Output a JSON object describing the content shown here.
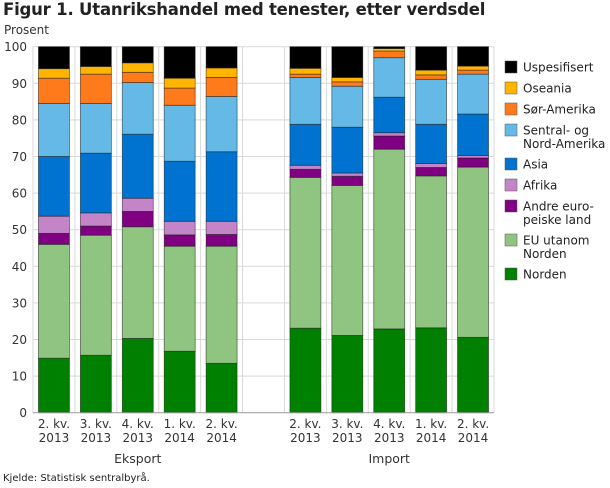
{
  "title": "Figur 1. Utanrikshandel med tenester, etter verdsdel",
  "source": "Kjelde: Statistisk sentralbyrå.",
  "chart_data": {
    "type": "bar",
    "stacked": true,
    "title": "Figur 1. Utanrikshandel med tenester, etter verdsdel",
    "ylabel": "Prosent",
    "xlabel": "",
    "ylim": [
      0,
      100
    ],
    "yticks": [
      0,
      10,
      20,
      30,
      40,
      50,
      60,
      70,
      80,
      90,
      100
    ],
    "grid": true,
    "legend_position": "right",
    "groups": [
      {
        "name": "Eksport",
        "categories": [
          [
            "2. kv.",
            "2013"
          ],
          [
            "3. kv.",
            "2013"
          ],
          [
            "4. kv.",
            "2013"
          ],
          [
            "1. kv.",
            "2014"
          ],
          [
            "2. kv.",
            "2014"
          ]
        ]
      },
      {
        "name": "Import",
        "categories": [
          [
            "2. kv.",
            "2013"
          ],
          [
            "3. kv.",
            "2013"
          ],
          [
            "4. kv.",
            "2013"
          ],
          [
            "1. kv.",
            "2014"
          ],
          [
            "2. kv.",
            "2014"
          ]
        ]
      }
    ],
    "categories": [
      "Eksport 2. kv. 2013",
      "Eksport 3. kv. 2013",
      "Eksport 4. kv. 2013",
      "Eksport 1. kv. 2014",
      "Eksport 2. kv. 2014",
      "Import 2. kv. 2013",
      "Import 3. kv. 2013",
      "Import 4. kv. 2013",
      "Import 1. kv. 2014",
      "Import 2. kv. 2014"
    ],
    "series": [
      {
        "name": "Norden",
        "legend": [
          "Norden"
        ],
        "color": "#008000",
        "values": [
          14.9,
          15.7,
          20.3,
          16.8,
          13.5,
          23.1,
          21.1,
          22.9,
          23.2,
          20.6
        ]
      },
      {
        "name": "EU utanom Norden",
        "legend": [
          "EU utanom",
          "Norden"
        ],
        "color": "#90C581",
        "values": [
          31.1,
          32.8,
          30.5,
          28.7,
          32.0,
          41.2,
          41.0,
          49.1,
          41.5,
          46.5
        ]
      },
      {
        "name": "Andre europeiske land",
        "legend": [
          "Andre euro-",
          "peiske land"
        ],
        "color": "#7F0080",
        "values": [
          3.0,
          2.5,
          4.2,
          3.1,
          3.2,
          2.2,
          2.5,
          3.6,
          2.3,
          2.5
        ]
      },
      {
        "name": "Afrika",
        "legend": [
          "Afrika"
        ],
        "color": "#C484C8",
        "values": [
          4.7,
          3.6,
          3.6,
          3.7,
          3.6,
          1.1,
          0.9,
          0.9,
          1.1,
          0.7
        ]
      },
      {
        "name": "Asia",
        "legend": [
          "Asia"
        ],
        "color": "#0073D1",
        "values": [
          16.3,
          16.3,
          17.5,
          16.4,
          19.0,
          11.2,
          12.5,
          9.7,
          10.7,
          11.3
        ]
      },
      {
        "name": "Sentral- og Nord-Amerika",
        "legend": [
          "Sentral- og",
          "Nord-Amerika"
        ],
        "color": "#64B9E6",
        "values": [
          14.5,
          13.6,
          14.1,
          15.3,
          15.1,
          12.8,
          11.2,
          10.8,
          12.3,
          10.9
        ]
      },
      {
        "name": "Sør-Amerika",
        "legend": [
          "Sør-Amerika"
        ],
        "color": "#FF7A1A",
        "values": [
          6.9,
          8.0,
          2.8,
          4.7,
          5.2,
          0.9,
          1.2,
          1.8,
          1.2,
          1.1
        ]
      },
      {
        "name": "Oseania",
        "legend": [
          "Oseania"
        ],
        "color": "#FFB400",
        "values": [
          2.6,
          2.1,
          2.6,
          2.7,
          2.6,
          1.6,
          1.2,
          0.7,
          1.3,
          1.1
        ]
      },
      {
        "name": "Uspesifisert",
        "legend": [
          "Uspesifisert"
        ],
        "color": "#000000",
        "values": [
          6.0,
          5.4,
          4.4,
          8.6,
          5.8,
          5.9,
          8.4,
          0.5,
          6.4,
          5.3
        ]
      }
    ]
  }
}
